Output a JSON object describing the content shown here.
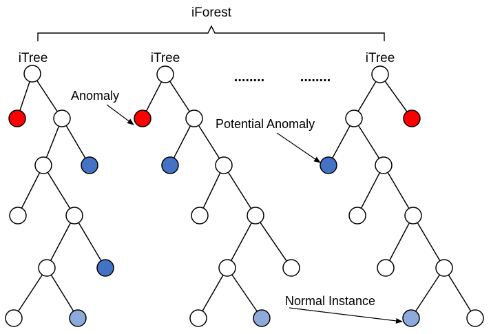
{
  "title": "iForest",
  "tree_label": "iTree",
  "ellipsis": "........",
  "annotations": {
    "anomaly": "Anomaly",
    "potential_anomaly": "Potential Anomaly",
    "normal_instance": "Normal Instance"
  },
  "node_types": {
    "normal": "#ffffff",
    "anomaly": "#ff0000",
    "potential_anomaly": "#4472c4",
    "normal_instance": "#8eaadb"
  },
  "colors": {
    "stroke": "#000000",
    "text": "#000000"
  }
}
